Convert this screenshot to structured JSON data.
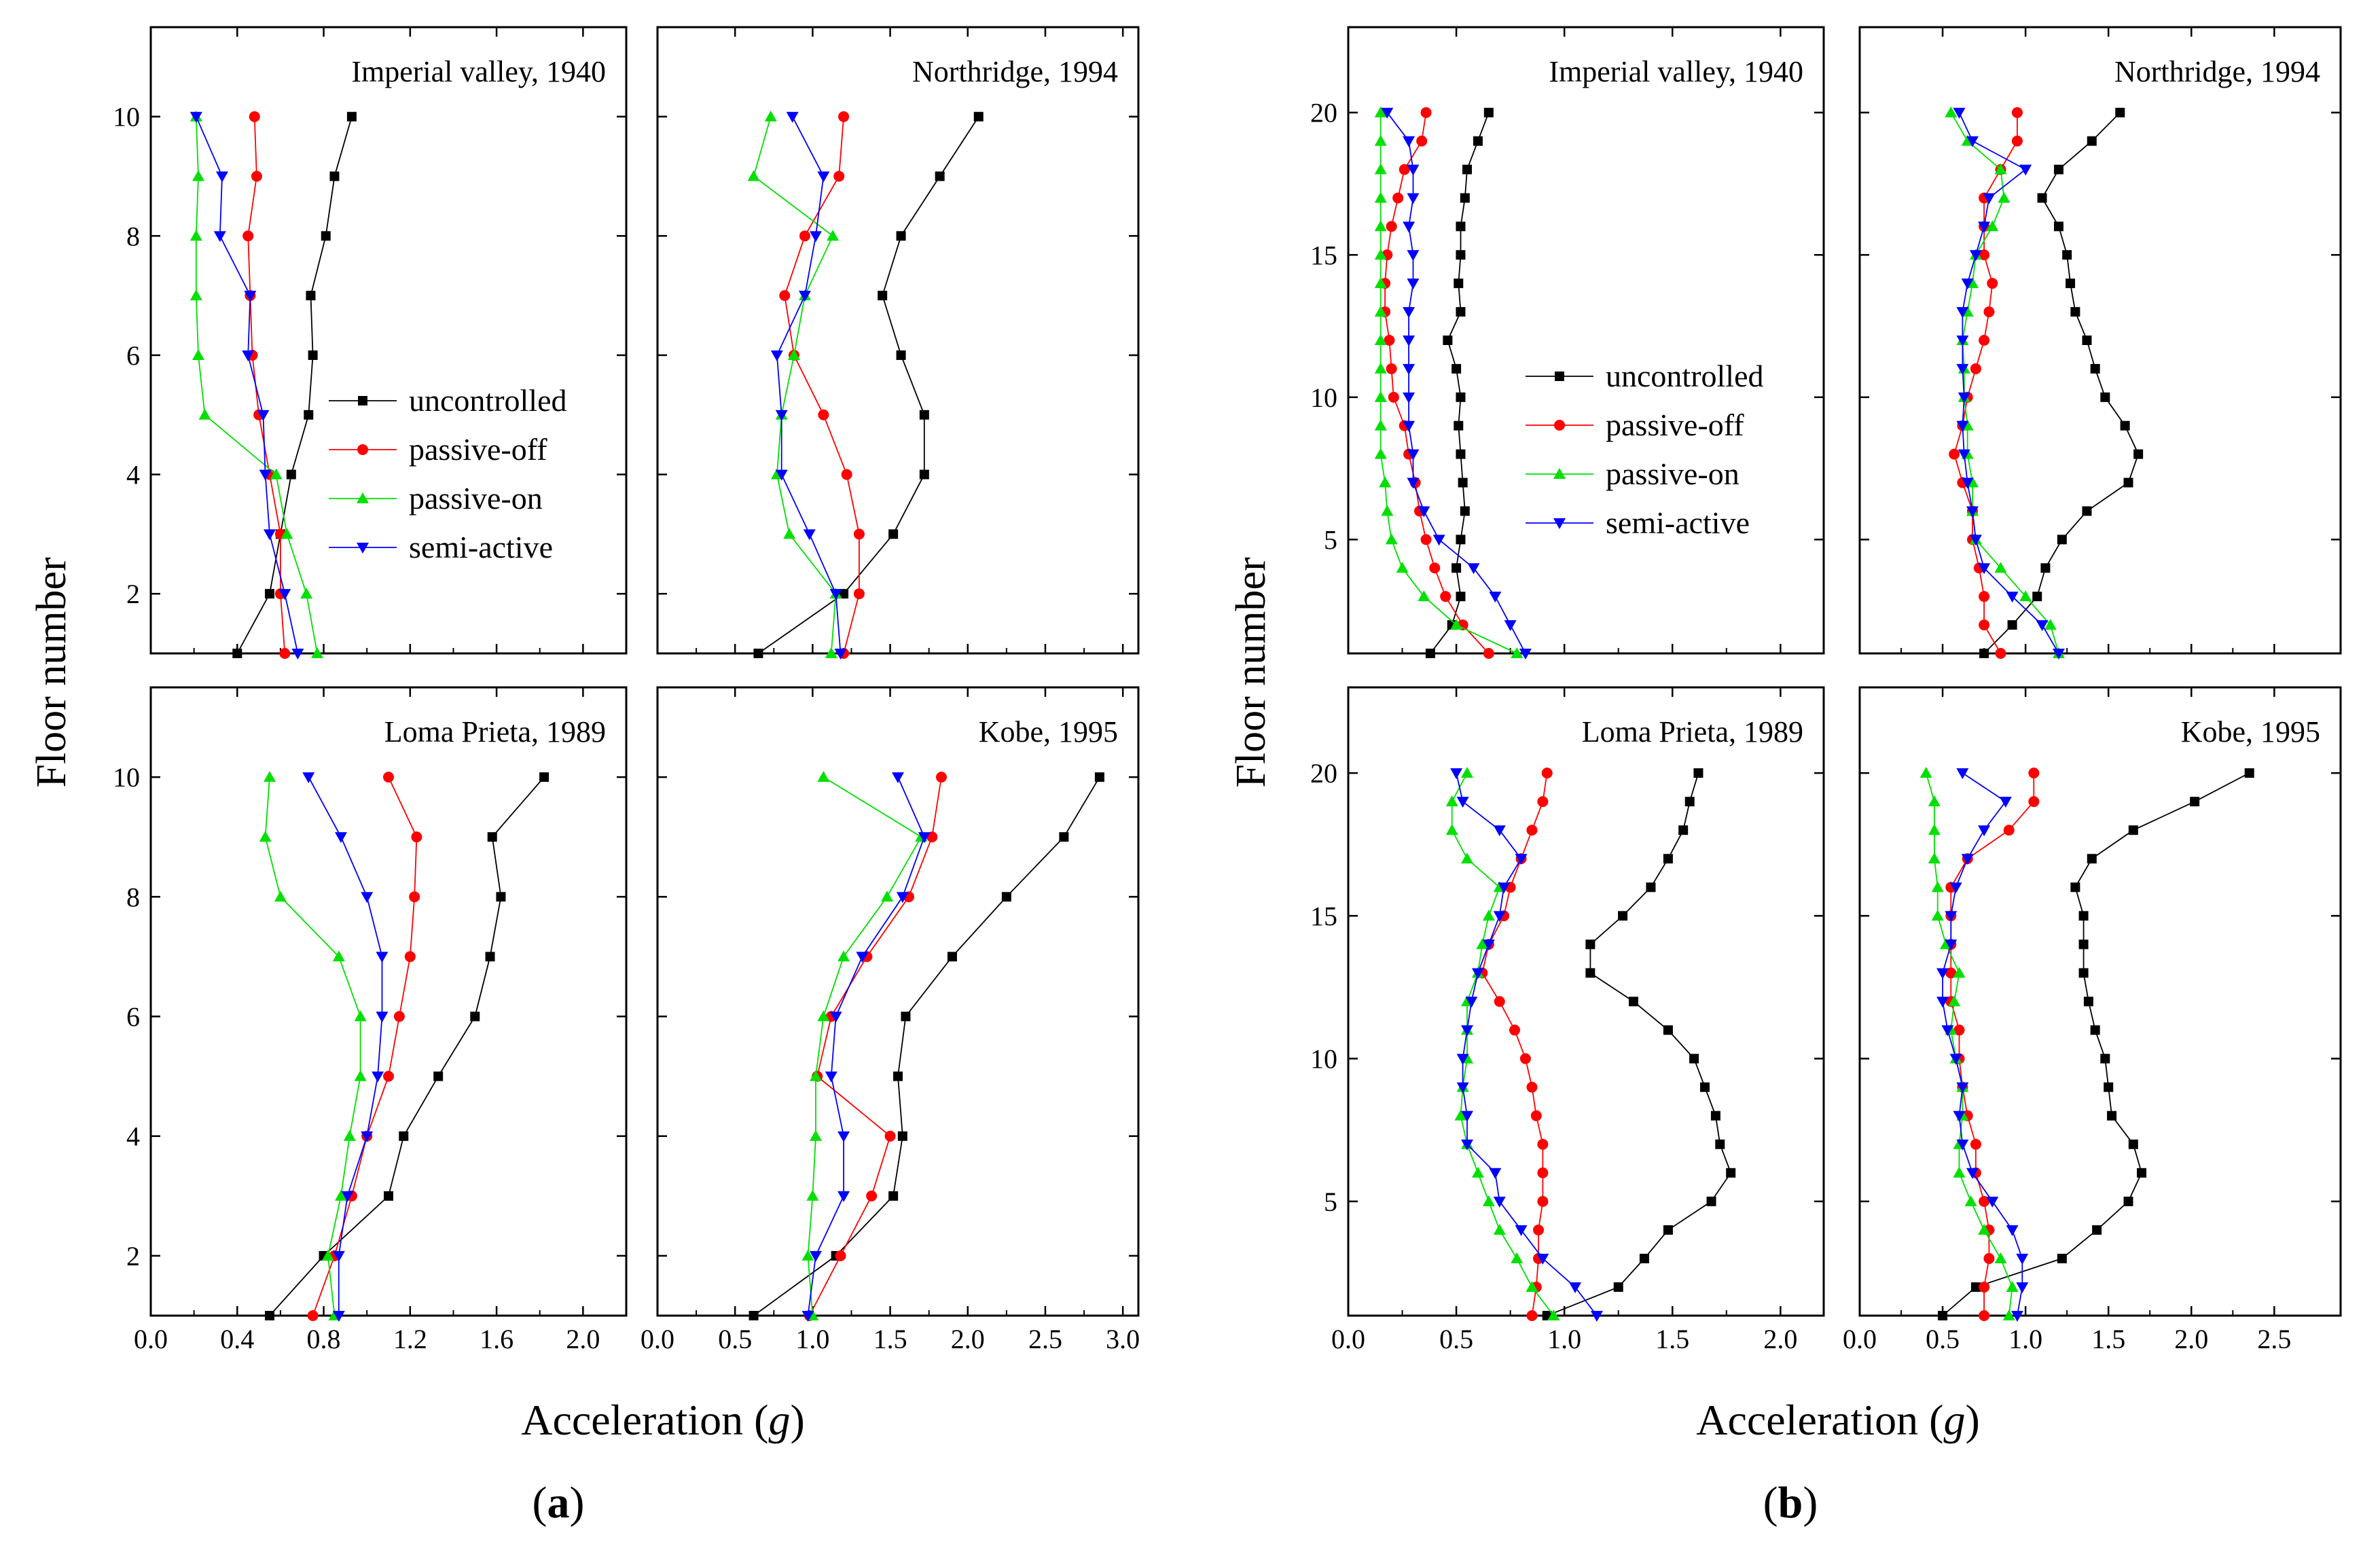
{
  "figure": {
    "panel_labels": [
      {
        "letter": "a",
        "open": "(",
        "close": ")"
      },
      {
        "letter": "b",
        "open": "(",
        "close": ")"
      }
    ],
    "ylabel": "Floor number",
    "xlabel_text": "Acceleration (",
    "xlabel_unit": "g",
    "xlabel_close": ")",
    "series_colors": {
      "uncontrolled": "#000000",
      "passive-off": "#ff0000",
      "passive-on": "#00e000",
      "semi-active": "#0000ff"
    },
    "legend_entries": [
      "uncontrolled",
      "passive-off",
      "passive-on",
      "semi-active"
    ]
  },
  "chart_data": [
    {
      "type": "line",
      "title": "Imperial valley, 1940",
      "group": "a",
      "xlabel": "Acceleration (g)",
      "ylabel": "Floor number",
      "xlim": [
        0,
        2.2
      ],
      "ylim": [
        1,
        11.5
      ],
      "xticks": [
        "0.0",
        "0.4",
        "0.8",
        "1.2",
        "1.6",
        "2.0"
      ],
      "yticks": [
        "2",
        "4",
        "6",
        "8",
        "10"
      ],
      "floors": [
        1,
        2,
        3,
        4,
        5,
        6,
        7,
        8,
        9,
        10
      ],
      "series": [
        {
          "name": "uncontrolled",
          "values": [
            0.4,
            0.55,
            0.6,
            0.65,
            0.73,
            0.75,
            0.74,
            0.81,
            0.85,
            0.93
          ]
        },
        {
          "name": "passive-off",
          "values": [
            0.62,
            0.6,
            0.6,
            0.55,
            0.5,
            0.47,
            0.46,
            0.45,
            0.49,
            0.48
          ]
        },
        {
          "name": "passive-on",
          "values": [
            0.77,
            0.72,
            0.63,
            0.58,
            0.25,
            0.22,
            0.21,
            0.21,
            0.22,
            0.21
          ]
        },
        {
          "name": "semi-active",
          "values": [
            0.68,
            0.62,
            0.55,
            0.53,
            0.52,
            0.45,
            0.46,
            0.32,
            0.33,
            0.21
          ]
        }
      ]
    },
    {
      "type": "line",
      "title": "Northridge, 1994",
      "group": "a",
      "xlabel": "Acceleration (g)",
      "ylabel": "Floor number",
      "xlim": [
        0,
        3.1
      ],
      "ylim": [
        1,
        11.5
      ],
      "xticks": [
        "0.0",
        "0.5",
        "1.0",
        "1.5",
        "2.0",
        "2.5",
        "3.0"
      ],
      "yticks": [
        "2",
        "4",
        "6",
        "8",
        "10"
      ],
      "floors": [
        1,
        2,
        3,
        4,
        5,
        6,
        7,
        8,
        9,
        10
      ],
      "series": [
        {
          "name": "uncontrolled",
          "values": [
            0.65,
            1.2,
            1.52,
            1.72,
            1.72,
            1.57,
            1.45,
            1.57,
            1.82,
            2.07
          ]
        },
        {
          "name": "passive-off",
          "values": [
            1.2,
            1.3,
            1.3,
            1.22,
            1.07,
            0.88,
            0.82,
            0.95,
            1.17,
            1.2
          ]
        },
        {
          "name": "passive-on",
          "values": [
            1.12,
            1.15,
            0.85,
            0.77,
            0.8,
            0.88,
            0.95,
            1.13,
            0.62,
            0.73
          ]
        },
        {
          "name": "semi-active",
          "values": [
            1.18,
            1.15,
            0.98,
            0.8,
            0.8,
            0.77,
            0.95,
            1.02,
            1.07,
            0.87
          ]
        }
      ]
    },
    {
      "type": "line",
      "title": "Loma Prieta, 1989",
      "group": "a",
      "xlabel": "Acceleration (g)",
      "ylabel": "Floor number",
      "xlim": [
        0,
        2.2
      ],
      "ylim": [
        1,
        11.5
      ],
      "xticks": [
        "0.0",
        "0.4",
        "0.8",
        "1.2",
        "1.6",
        "2.0"
      ],
      "yticks": [
        "2",
        "4",
        "6",
        "8",
        "10"
      ],
      "floors": [
        1,
        2,
        3,
        4,
        5,
        6,
        7,
        8,
        9,
        10
      ],
      "series": [
        {
          "name": "uncontrolled",
          "values": [
            0.55,
            0.8,
            1.1,
            1.17,
            1.33,
            1.5,
            1.57,
            1.62,
            1.58,
            1.82
          ]
        },
        {
          "name": "passive-off",
          "values": [
            0.75,
            0.85,
            0.93,
            1.0,
            1.1,
            1.15,
            1.2,
            1.22,
            1.23,
            1.1
          ]
        },
        {
          "name": "passive-on",
          "values": [
            0.85,
            0.82,
            0.88,
            0.92,
            0.97,
            0.97,
            0.87,
            0.6,
            0.53,
            0.55
          ]
        },
        {
          "name": "semi-active",
          "values": [
            0.87,
            0.87,
            0.91,
            1.0,
            1.05,
            1.07,
            1.07,
            1.0,
            0.88,
            0.73
          ]
        }
      ]
    },
    {
      "type": "line",
      "title": "Kobe, 1995",
      "group": "a",
      "xlabel": "Acceleration (g)",
      "ylabel": "Floor number",
      "xlim": [
        0,
        3.1
      ],
      "ylim": [
        1,
        11.5
      ],
      "xticks": [
        "0.0",
        "0.5",
        "1.0",
        "1.5",
        "2.0",
        "2.5",
        "3.0"
      ],
      "yticks": [
        "2",
        "4",
        "6",
        "8",
        "10"
      ],
      "floors": [
        1,
        2,
        3,
        4,
        5,
        6,
        7,
        8,
        9,
        10
      ],
      "series": [
        {
          "name": "uncontrolled",
          "values": [
            0.62,
            1.15,
            1.52,
            1.58,
            1.55,
            1.6,
            1.9,
            2.25,
            2.62,
            2.85
          ]
        },
        {
          "name": "passive-off",
          "values": [
            0.98,
            1.18,
            1.38,
            1.5,
            1.03,
            1.12,
            1.35,
            1.62,
            1.77,
            1.83
          ]
        },
        {
          "name": "passive-on",
          "values": [
            1.0,
            0.97,
            1.0,
            1.02,
            1.02,
            1.07,
            1.2,
            1.48,
            1.7,
            1.07
          ]
        },
        {
          "name": "semi-active",
          "values": [
            0.97,
            1.02,
            1.2,
            1.2,
            1.12,
            1.15,
            1.32,
            1.58,
            1.72,
            1.55
          ]
        }
      ]
    },
    {
      "type": "line",
      "title": "Imperial valley, 1940",
      "group": "b",
      "xlabel": "Acceleration (g)",
      "ylabel": "Floor number",
      "xlim": [
        0,
        2.2
      ],
      "ylim": [
        1,
        23
      ],
      "xticks": [
        "0.0",
        "0.5",
        "1.0",
        "1.5",
        "2.0"
      ],
      "yticks": [
        "5",
        "10",
        "15",
        "20"
      ],
      "floors": [
        1,
        2,
        3,
        4,
        5,
        6,
        7,
        8,
        9,
        10,
        11,
        12,
        13,
        14,
        15,
        16,
        17,
        18,
        19,
        20
      ],
      "series": [
        {
          "name": "uncontrolled",
          "values": [
            0.38,
            0.48,
            0.52,
            0.5,
            0.52,
            0.54,
            0.53,
            0.52,
            0.51,
            0.52,
            0.5,
            0.46,
            0.52,
            0.51,
            0.52,
            0.52,
            0.54,
            0.55,
            0.6,
            0.65
          ]
        },
        {
          "name": "passive-off",
          "values": [
            0.65,
            0.53,
            0.45,
            0.4,
            0.36,
            0.33,
            0.31,
            0.28,
            0.26,
            0.21,
            0.2,
            0.19,
            0.17,
            0.17,
            0.18,
            0.2,
            0.23,
            0.26,
            0.34,
            0.36
          ]
        },
        {
          "name": "passive-on",
          "values": [
            0.78,
            0.5,
            0.35,
            0.25,
            0.2,
            0.18,
            0.17,
            0.15,
            0.15,
            0.15,
            0.15,
            0.15,
            0.15,
            0.15,
            0.15,
            0.15,
            0.15,
            0.15,
            0.15,
            0.15
          ]
        },
        {
          "name": "semi-active",
          "values": [
            0.82,
            0.75,
            0.68,
            0.58,
            0.42,
            0.35,
            0.3,
            0.3,
            0.28,
            0.28,
            0.28,
            0.28,
            0.28,
            0.3,
            0.3,
            0.28,
            0.3,
            0.3,
            0.28,
            0.18
          ]
        }
      ]
    },
    {
      "type": "line",
      "title": "Northridge, 1994",
      "group": "b",
      "xlabel": "Acceleration (g)",
      "ylabel": "Floor number",
      "xlim": [
        0,
        2.9
      ],
      "ylim": [
        1,
        23
      ],
      "xticks": [
        "0.0",
        "0.5",
        "1.0",
        "1.5",
        "2.0",
        "2.5"
      ],
      "yticks": [
        "5",
        "10",
        "15",
        "20"
      ],
      "floors": [
        1,
        2,
        3,
        4,
        5,
        6,
        7,
        8,
        9,
        10,
        11,
        12,
        13,
        14,
        15,
        16,
        17,
        18,
        19,
        20
      ],
      "series": [
        {
          "name": "uncontrolled",
          "values": [
            0.75,
            0.92,
            1.07,
            1.12,
            1.22,
            1.37,
            1.62,
            1.68,
            1.6,
            1.48,
            1.42,
            1.37,
            1.3,
            1.27,
            1.25,
            1.2,
            1.1,
            1.2,
            1.4,
            1.57
          ]
        },
        {
          "name": "passive-off",
          "values": [
            0.85,
            0.75,
            0.75,
            0.72,
            0.68,
            0.68,
            0.62,
            0.57,
            0.62,
            0.65,
            0.7,
            0.75,
            0.78,
            0.8,
            0.75,
            0.75,
            0.75,
            0.85,
            0.95,
            0.95
          ]
        },
        {
          "name": "passive-on",
          "values": [
            1.2,
            1.15,
            1.0,
            0.85,
            0.7,
            0.68,
            0.68,
            0.65,
            0.65,
            0.63,
            0.63,
            0.62,
            0.65,
            0.68,
            0.7,
            0.8,
            0.87,
            0.85,
            0.65,
            0.55
          ]
        },
        {
          "name": "semi-active",
          "values": [
            1.2,
            1.1,
            0.92,
            0.75,
            0.7,
            0.68,
            0.65,
            0.63,
            0.62,
            0.63,
            0.62,
            0.62,
            0.62,
            0.65,
            0.7,
            0.75,
            0.78,
            1.0,
            0.68,
            0.6
          ]
        }
      ]
    },
    {
      "type": "line",
      "title": "Loma Prieta, 1989",
      "group": "b",
      "xlabel": "Acceleration (g)",
      "ylabel": "Floor number",
      "xlim": [
        0,
        2.2
      ],
      "ylim": [
        1,
        23
      ],
      "xticks": [
        "0.0",
        "0.5",
        "1.0",
        "1.5",
        "2.0"
      ],
      "yticks": [
        "5",
        "10",
        "15",
        "20"
      ],
      "floors": [
        1,
        2,
        3,
        4,
        5,
        6,
        7,
        8,
        9,
        10,
        11,
        12,
        13,
        14,
        15,
        16,
        17,
        18,
        19,
        20
      ],
      "series": [
        {
          "name": "uncontrolled",
          "values": [
            0.92,
            1.25,
            1.37,
            1.48,
            1.68,
            1.77,
            1.72,
            1.7,
            1.65,
            1.6,
            1.48,
            1.32,
            1.12,
            1.12,
            1.27,
            1.4,
            1.48,
            1.55,
            1.58,
            1.62
          ]
        },
        {
          "name": "passive-off",
          "values": [
            0.85,
            0.87,
            0.88,
            0.88,
            0.9,
            0.9,
            0.9,
            0.87,
            0.85,
            0.82,
            0.77,
            0.7,
            0.62,
            0.65,
            0.72,
            0.75,
            0.8,
            0.85,
            0.9,
            0.92
          ]
        },
        {
          "name": "passive-on",
          "values": [
            0.95,
            0.85,
            0.78,
            0.7,
            0.65,
            0.6,
            0.55,
            0.52,
            0.53,
            0.55,
            0.55,
            0.55,
            0.6,
            0.62,
            0.65,
            0.7,
            0.55,
            0.48,
            0.48,
            0.55
          ]
        },
        {
          "name": "semi-active",
          "values": [
            1.15,
            1.05,
            0.9,
            0.8,
            0.7,
            0.68,
            0.55,
            0.55,
            0.53,
            0.53,
            0.55,
            0.57,
            0.6,
            0.65,
            0.7,
            0.72,
            0.8,
            0.7,
            0.53,
            0.5
          ]
        }
      ]
    },
    {
      "type": "line",
      "title": "Kobe, 1995",
      "group": "b",
      "xlabel": "Acceleration (g)",
      "ylabel": "Floor number",
      "xlim": [
        0,
        2.9
      ],
      "ylim": [
        1,
        23
      ],
      "xticks": [
        "0.0",
        "0.5",
        "1.0",
        "1.5",
        "2.0",
        "2.5"
      ],
      "yticks": [
        "5",
        "10",
        "15",
        "20"
      ],
      "floors": [
        1,
        2,
        3,
        4,
        5,
        6,
        7,
        8,
        9,
        10,
        11,
        12,
        13,
        14,
        15,
        16,
        17,
        18,
        19,
        20
      ],
      "series": [
        {
          "name": "uncontrolled",
          "values": [
            0.5,
            0.7,
            1.22,
            1.43,
            1.62,
            1.7,
            1.65,
            1.52,
            1.5,
            1.48,
            1.42,
            1.38,
            1.35,
            1.35,
            1.35,
            1.3,
            1.4,
            1.65,
            2.02,
            2.35
          ]
        },
        {
          "name": "passive-off",
          "values": [
            0.75,
            0.75,
            0.78,
            0.78,
            0.75,
            0.7,
            0.7,
            0.65,
            0.62,
            0.6,
            0.6,
            0.55,
            0.55,
            0.55,
            0.55,
            0.55,
            0.65,
            0.9,
            1.05,
            1.05
          ]
        },
        {
          "name": "passive-on",
          "values": [
            0.9,
            0.92,
            0.85,
            0.75,
            0.67,
            0.6,
            0.6,
            0.62,
            0.62,
            0.58,
            0.55,
            0.57,
            0.6,
            0.52,
            0.47,
            0.47,
            0.45,
            0.45,
            0.45,
            0.4
          ]
        },
        {
          "name": "semi-active",
          "values": [
            0.95,
            0.98,
            0.98,
            0.92,
            0.8,
            0.68,
            0.62,
            0.6,
            0.62,
            0.58,
            0.53,
            0.5,
            0.5,
            0.55,
            0.55,
            0.58,
            0.65,
            0.75,
            0.88,
            0.62
          ]
        }
      ]
    }
  ]
}
